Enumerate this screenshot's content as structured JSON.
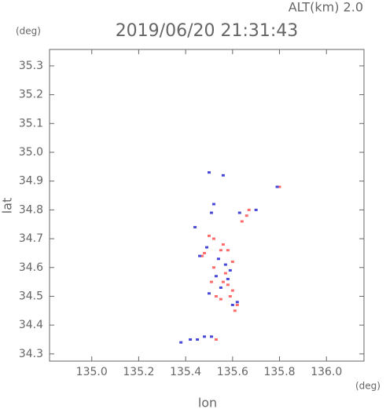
{
  "chart_data": {
    "type": "scatter",
    "title": "2019/06/20 21:31:43",
    "subtitle": "ALT(km) 2.0",
    "y_unit": "(deg)",
    "x_unit": "(deg)",
    "x_label": "lon",
    "y_label": "lat",
    "xlim": [
      134.82,
      136.16
    ],
    "ylim": [
      34.275,
      35.357
    ],
    "xticks": [
      {
        "value": 135,
        "label": "135.0"
      },
      135.2,
      135.4,
      135.6,
      135.8,
      {
        "value": 136,
        "label": "136.0"
      }
    ],
    "yticks": [
      34.3,
      34.4,
      34.5,
      34.6,
      34.7,
      34.8,
      34.9,
      {
        "value": 35,
        "label": "35.0"
      },
      35.1,
      35.2,
      35.3
    ],
    "series": [
      {
        "color": "#ff6b6b",
        "x": [
          135.5,
          135.52,
          135.55,
          135.58,
          135.6,
          135.52,
          135.56,
          135.58,
          135.53,
          135.55,
          135.62,
          135.6,
          135.48,
          135.47,
          135.57,
          135.61,
          135.66,
          135.67,
          135.64,
          135.8,
          135.53,
          135.56,
          135.51,
          135.59
        ],
        "values": [
          34.71,
          34.7,
          34.66,
          34.66,
          34.62,
          34.6,
          34.55,
          34.54,
          34.5,
          34.49,
          34.47,
          34.52,
          34.65,
          34.64,
          34.58,
          34.45,
          34.78,
          34.8,
          34.76,
          34.88,
          34.35,
          34.68,
          34.55,
          34.5
        ]
      },
      {
        "color": "#4848d8",
        "x": [
          135.5,
          135.52,
          135.51,
          135.49,
          135.54,
          135.57,
          135.53,
          135.58,
          135.62,
          135.6,
          135.5,
          135.46,
          135.55,
          135.59,
          135.63,
          135.7,
          135.79,
          135.42,
          135.45,
          135.48,
          135.51,
          135.38,
          135.44,
          135.56
        ],
        "values": [
          34.93,
          34.82,
          34.79,
          34.67,
          34.63,
          34.61,
          34.57,
          34.56,
          34.48,
          34.47,
          34.51,
          34.64,
          34.53,
          34.59,
          34.79,
          34.8,
          34.88,
          34.35,
          34.35,
          34.36,
          34.36,
          34.34,
          34.74,
          34.92
        ]
      }
    ]
  }
}
